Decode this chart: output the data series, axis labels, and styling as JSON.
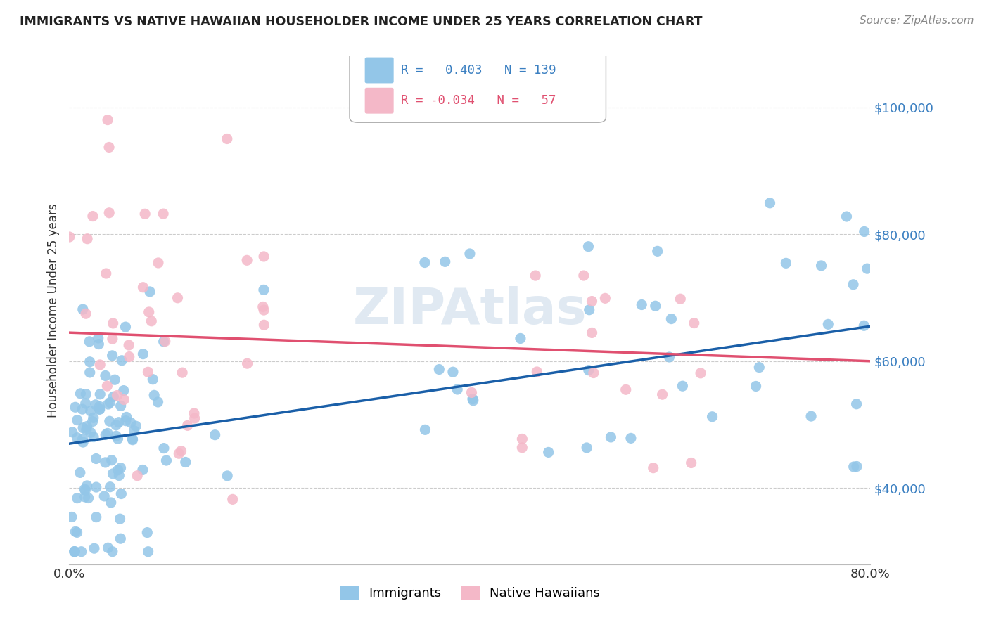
{
  "title": "IMMIGRANTS VS NATIVE HAWAIIAN HOUSEHOLDER INCOME UNDER 25 YEARS CORRELATION CHART",
  "source": "Source: ZipAtlas.com",
  "ylabel": "Householder Income Under 25 years",
  "xlim": [
    0.0,
    0.8
  ],
  "ylim": [
    28000,
    108000
  ],
  "immigrants_color": "#93c6e8",
  "native_color": "#f4b8c8",
  "trend_immigrants_color": "#1a5fa8",
  "trend_native_color": "#e05070",
  "legend_immigrants_r": "0.403",
  "legend_immigrants_n": "139",
  "legend_native_r": "-0.034",
  "legend_native_n": "57",
  "watermark": "ZIPAtlas",
  "background": "#ffffff",
  "imm_trend_x0": 0.0,
  "imm_trend_y0": 47000,
  "imm_trend_x1": 0.8,
  "imm_trend_y1": 65500,
  "nat_trend_x0": 0.0,
  "nat_trend_y0": 64500,
  "nat_trend_x1": 0.8,
  "nat_trend_y1": 60000
}
